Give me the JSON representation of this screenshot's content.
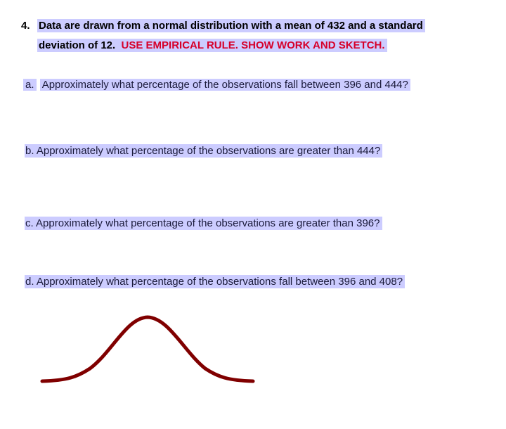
{
  "problem": {
    "number": "4.",
    "line1": "Data are drawn from a normal distribution with a mean of 432 and a standard",
    "line2_black": "deviation of 12.",
    "line2_red": "USE EMPIRICAL RULE.  SHOW WORK AND SKETCH."
  },
  "questions": [
    {
      "label": "a.",
      "text": "Approximately what percentage of the observations fall between 396 and 444?"
    },
    {
      "label": "b.",
      "text": "Approximately what percentage of the observations are greater than 444?"
    },
    {
      "label": "c.",
      "text": "Approximately what percentage of the observations are greater than 396?"
    },
    {
      "label": "d.",
      "text": "Approximately what percentage of the observations fall between 396 and 408?"
    }
  ],
  "colors": {
    "highlight": "#ccccff",
    "emphasis": "#d6002a",
    "sketch": "#800000"
  }
}
